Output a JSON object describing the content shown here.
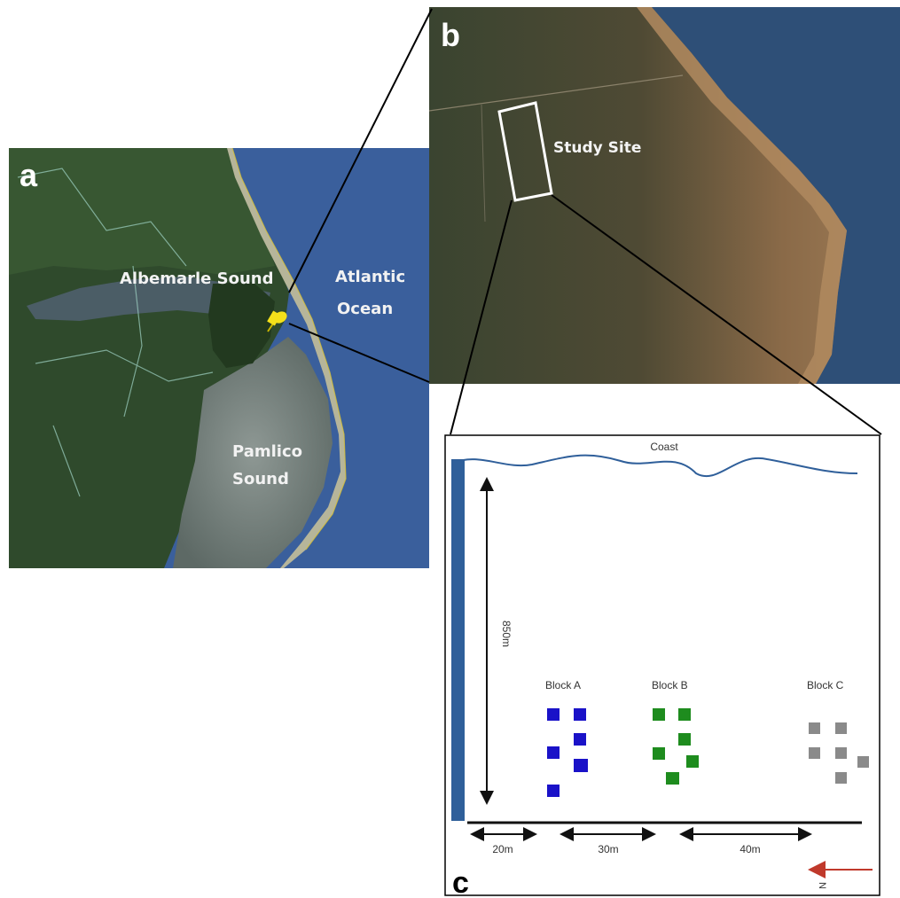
{
  "panel_a": {
    "letter": "a",
    "labels": {
      "albemarle": "Albemarle Sound",
      "atlantic_line1": "Atlantic",
      "atlantic_line2": "Ocean",
      "pamlico_line1": "Pamlico",
      "pamlico_line2": "Sound"
    },
    "pin_icon": "push-pin-icon",
    "colors": {
      "ocean": "#3a5f9c",
      "land": "#2e4a2a",
      "sound": "#6f7a78",
      "pin": "#f4e01a"
    }
  },
  "panel_b": {
    "letter": "b",
    "labels": {
      "study_site": "Study Site"
    },
    "colors": {
      "forest": "#35422b",
      "marsh": "#8a6a48",
      "water": "#2e4f77"
    }
  },
  "panel_c": {
    "letter": "c",
    "coast_label": "Coast",
    "distance_label": "850m",
    "spacings": [
      "20m",
      "30m",
      "40m"
    ],
    "north_label": "N",
    "blocks": [
      {
        "name": "Block A",
        "color": "#1a12c8"
      },
      {
        "name": "Block B",
        "color": "#1e8c1e"
      },
      {
        "name": "Block C",
        "color": "#8a8a8a"
      }
    ],
    "colors": {
      "coast_line": "#2f5f9a",
      "road": "#2f5f9a",
      "north_arrow": "#c0392b"
    }
  }
}
